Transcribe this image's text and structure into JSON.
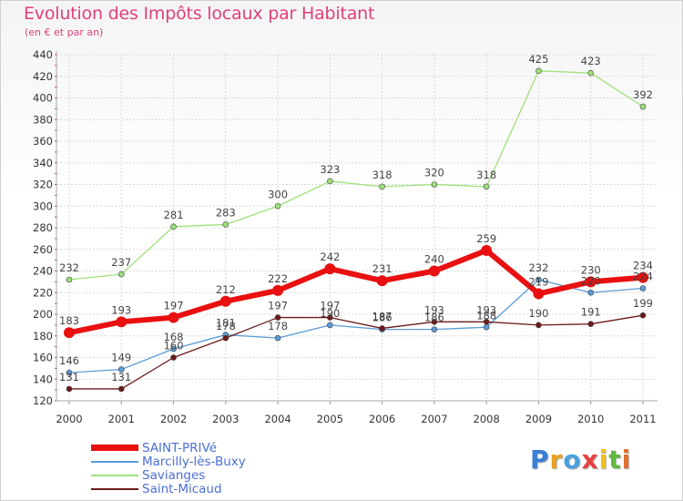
{
  "chart_data": {
    "type": "line",
    "title": "Evolution des Impôts locaux par Habitant",
    "subtitle": "(en € et par an)",
    "xlabel": "",
    "ylabel": "",
    "ylim": [
      120,
      440
    ],
    "yticks": [
      120,
      140,
      160,
      180,
      200,
      220,
      240,
      260,
      280,
      300,
      320,
      340,
      360,
      380,
      400,
      420,
      440
    ],
    "categories": [
      "2000",
      "2001",
      "2002",
      "2003",
      "2004",
      "2005",
      "2006",
      "2007",
      "2008",
      "2009",
      "2010",
      "2011"
    ],
    "series": [
      {
        "name": "SAINT-PRIVé",
        "color": "#e81010",
        "values": [
          183,
          193,
          197,
          212,
          222,
          242,
          231,
          240,
          259,
          219,
          230,
          234
        ],
        "labels": [
          "183",
          "193",
          "197",
          "212",
          "222",
          "242",
          "231",
          "240",
          "259",
          "219",
          "230",
          "234"
        ]
      },
      {
        "name": "Marcilly-lès-Buxy",
        "color": "#5a9bd5",
        "values": [
          146,
          149,
          168,
          181,
          178,
          190,
          186,
          186,
          188,
          232,
          220,
          224
        ],
        "labels": [
          "146",
          "149",
          "168",
          "181",
          "178",
          "190",
          "186",
          "186",
          "188",
          "232",
          "220",
          "224"
        ]
      },
      {
        "name": "Savianges",
        "color": "#9ee07a",
        "values": [
          232,
          237,
          281,
          283,
          300,
          323,
          318,
          320,
          318,
          425,
          423,
          392
        ],
        "labels": [
          "232",
          "237",
          "281",
          "283",
          "300",
          "323",
          "318",
          "320",
          "318",
          "425",
          "423",
          "392"
        ]
      },
      {
        "name": "Saint-Micaud",
        "color": "#6b1a1a",
        "values": [
          131,
          131,
          160,
          178,
          197,
          197,
          187,
          193,
          193,
          190,
          191,
          199
        ],
        "labels": [
          "131",
          "131",
          "160",
          "178",
          "197",
          "197",
          "187",
          "193",
          "193",
          "190",
          "191",
          "199"
        ]
      }
    ],
    "legend_position": "bottom-left"
  },
  "logo": {
    "letters": [
      "P",
      "r",
      "o",
      "x",
      "i",
      "t",
      "i"
    ],
    "colors": [
      "#3a7fd6",
      "#e8a020",
      "#4aa0e0",
      "#e84040",
      "#f0c020",
      "#60b840",
      "#e07030"
    ]
  }
}
